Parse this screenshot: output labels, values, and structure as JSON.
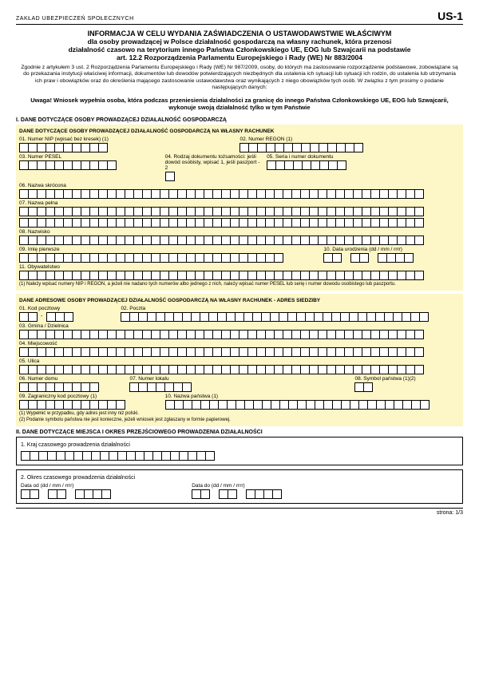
{
  "header": {
    "org": "ZAKŁAD UBEZPIECZEŃ SPOŁECZNYCH",
    "code": "US-1"
  },
  "title": {
    "line1": "INFORMACJA W CELU WYDANIA ZAŚWIADCZENIA O USTAWODAWSTWIE WŁAŚCIWYM",
    "line2": "dla osoby prowadzącej w Polsce działalność gospodarczą na własny rachunek, która przenosi",
    "line3": "działalność czasowo na terytorium innego Państwa Członkowskiego UE, EOG lub Szwajcarii na podstawie",
    "line4": "art. 12.2 Rozporządzenia Parlamentu Europejskiego i Rady (WE) Nr 883/2004"
  },
  "intro": "Zgodnie z artykułem 3 ust. 2 Rozporządzenia Parlamentu Europejskiego i Rady (WE) Nr 987/2009, osoby, do których ma zastosowanie rozporządzenie podstawowe, zobowiązane są do przekazania instytucji właściwej informacji, dokumentów lub dowodów potwierdzających niezbędnych dla ustalenia ich sytuacji lub sytuacji ich rodzin, do ustalenia lub utrzymania ich praw i obowiązków oraz do określenia mającego zastosowanie ustawodawstwa oraz wynikających z niego obowiązków tych osób. W związku z tym prosimy o podanie następujących danych:",
  "warning": "Uwaga! Wniosek wypełnia osoba, która podczas przeniesienia działalności za granicę do innego Państwa Członkowskiego UE, EOG lub Szwajcarii,  wykonuje swoją działalność tylko w tym Państwie",
  "secI": {
    "heading": "I. DANE DOTYCZĄCE OSOBY PROWADZĄCEJ DZIAŁALNOŚĆ GOSPODARCZĄ",
    "block1": {
      "title": "DANE DOTYCZĄCE OSOBY PROWADZĄCEJ DZIAŁALNOŚĆ GOSPODARCZĄ NA WŁASNY RACHUNEK",
      "f01": "01. Numer NIP (wpisać bez kresek) (1)",
      "f02": "02. Numer REGON (1)",
      "f03": "03. Numer PESEL",
      "f04": "04. Rodzaj dokumentu tożsamości: jeśli dowód osobisty, wpisać 1, jeśli paszport - 2",
      "f05": "05. Seria i numer dokumentu",
      "f06": "06. Nazwa skrócona",
      "f07": "07. Nazwa pełna",
      "f08": "08. Nazwisko",
      "f09": "09. Imię pierwsze",
      "f10": "10. Data urodzenia (dd / mm / rrrr)",
      "f11": "11. Obywatelstwo",
      "note": "(1) Należy wpisać numery NIP i REGON, a jeżeli nie nadano tych numerów albo jednego z nich, należy wpisać numer PESEL lub serię i numer dowodu osobistego lub paszportu."
    },
    "block2": {
      "title": "DANE ADRESOWE OSOBY PROWADZĄCEJ DZIAŁALNOŚĆ GOSPODARCZĄ NA WŁASNY RACHUNEK - ADRES SIEDZIBY",
      "f01": "01. Kod pocztowy",
      "f02": "02. Poczta",
      "f03": "03. Gmina / Dzielnica",
      "f04": "04. Miejscowość",
      "f05": "05. Ulica",
      "f06": "06. Numer domu",
      "f07": "07. Numer lokalu",
      "f08": "08. Symbol państwa (1)(2)",
      "f09": "09. Zagraniczny kod pocztowy (1)",
      "f10": "10. Nazwa państwa (1)",
      "note1": "(1) Wypełnić w przypadku, gdy adres jest inny niż polski.",
      "note2": "(2) Podanie symbolu państwa nie jest konieczne, jeżeli wniosek jest zgłaszany w formie papierowej."
    }
  },
  "secII": {
    "heading": "II. DANE DOTYCZĄCE MIEJSCA I OKRES PRZEJŚCIOWEGO PROWADZENIA DZIAŁALNOŚCI",
    "box1": {
      "label": "1. Kraj czasowego prowadzenia działalności"
    },
    "box2": {
      "label": "2. Okres czasowego prowadzenia działalności",
      "from": "Data od (dd / mm / rrrr)",
      "to": "Data do (dd / mm / rrrr)"
    }
  },
  "footer": "strona: 1/3",
  "style": {
    "yellow": "#fdf6c6",
    "cellSize": 12,
    "pageWidth": 600,
    "pageHeight": 848
  }
}
